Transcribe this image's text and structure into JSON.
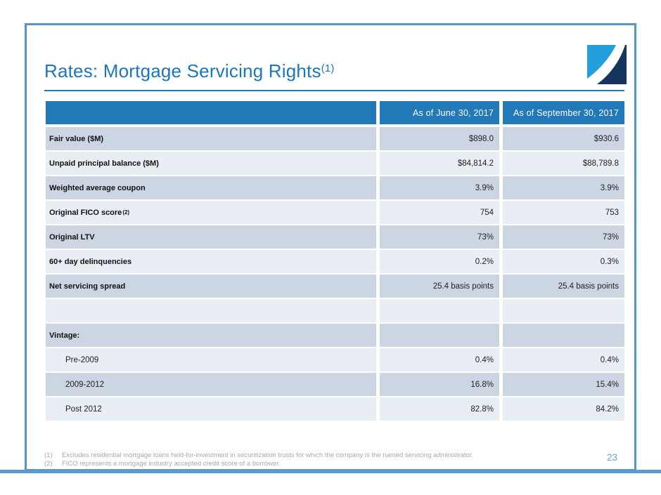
{
  "slide": {
    "title": "Rates: Mortgage Servicing Rights",
    "title_sup": "(1)",
    "page_number": "23"
  },
  "logo": {
    "name": "company-logo-swoosh-square"
  },
  "table": {
    "columns": [
      "As of June 30, 2017",
      "As of September 30, 2017"
    ],
    "rows": [
      {
        "label": "Fair value ($M)",
        "bold": true,
        "indent": false,
        "sup": "",
        "values": [
          "$898.0",
          "$930.6"
        ]
      },
      {
        "label": "Unpaid principal balance ($M)",
        "bold": true,
        "indent": false,
        "sup": "",
        "values": [
          "$84,814.2",
          "$88,789.8"
        ]
      },
      {
        "label": "Weighted average coupon",
        "bold": true,
        "indent": false,
        "sup": "",
        "values": [
          "3.9%",
          "3.9%"
        ]
      },
      {
        "label": "Original FICO score",
        "bold": true,
        "indent": false,
        "sup": "(2)",
        "values": [
          "754",
          "753"
        ]
      },
      {
        "label": "Original LTV",
        "bold": true,
        "indent": false,
        "sup": "",
        "values": [
          "73%",
          "73%"
        ]
      },
      {
        "label": "60+ day delinquencies",
        "bold": true,
        "indent": false,
        "sup": "",
        "values": [
          "0.2%",
          "0.3%"
        ]
      },
      {
        "label": "Net servicing spread",
        "bold": true,
        "indent": false,
        "sup": "",
        "values": [
          "25.4 basis points",
          "25.4 basis points"
        ]
      },
      {
        "label": "",
        "bold": false,
        "indent": false,
        "sup": "",
        "values": [
          "",
          ""
        ]
      },
      {
        "label": "Vintage:",
        "bold": true,
        "indent": false,
        "sup": "",
        "values": [
          "",
          ""
        ]
      },
      {
        "label": "Pre-2009",
        "bold": false,
        "indent": true,
        "sup": "",
        "values": [
          "0.4%",
          "0.4%"
        ]
      },
      {
        "label": "2009-2012",
        "bold": false,
        "indent": true,
        "sup": "",
        "values": [
          "16.8%",
          "15.4%"
        ]
      },
      {
        "label": "Post 2012",
        "bold": false,
        "indent": true,
        "sup": "",
        "values": [
          "82.8%",
          "84.2%"
        ]
      }
    ]
  },
  "footnotes": [
    {
      "marker": "(1)",
      "text": "Excludes residential mortgage loans held-for-investment in securitization trusts for which the company is the named servicing administrator."
    },
    {
      "marker": "(2)",
      "text": "FICO represents a mortgage industry accepted credit score of a borrower."
    }
  ],
  "colors": {
    "title-blue": "#1C76BD",
    "header-bg": "#2279B7",
    "row-dark": "#CCD6E3",
    "row-light": "#E9EEF4",
    "border-blue": "#5795CB",
    "bar-blue": "#5A9BD5",
    "footnote-gray": "#A8AAAC",
    "page-blue": "#63A0D4",
    "logo-light": "#239FDB",
    "logo-navy": "#15355E"
  }
}
